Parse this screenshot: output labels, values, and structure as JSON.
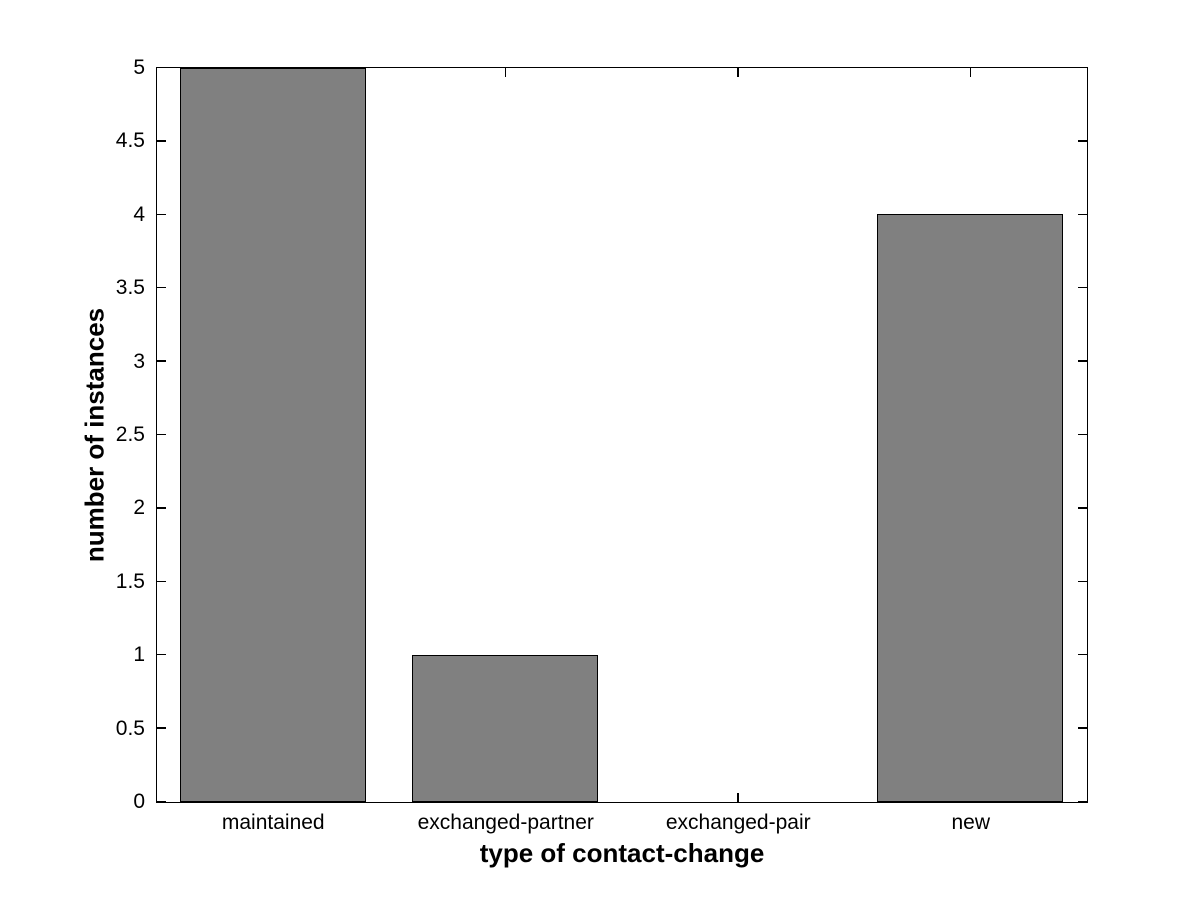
{
  "chart_data": {
    "type": "bar",
    "title": "",
    "categories": [
      "maintained",
      "exchanged-partner",
      "exchanged-pair",
      "new"
    ],
    "values": [
      5,
      1,
      0,
      4
    ],
    "xlabel": "type of contact-change",
    "ylabel": "number of instances",
    "ylim": [
      0,
      5
    ],
    "ytick_step": 0.5,
    "ytick_labels": [
      "0",
      "0.5",
      "1",
      "1.5",
      "2",
      "2.5",
      "3",
      "3.5",
      "4",
      "4.5",
      "5"
    ],
    "bar_width_fraction": 0.8,
    "bar_fill_color": "#808080",
    "bar_edge_color": "#000000",
    "axis_color": "#000000",
    "background_color": "#ffffff",
    "grid": false,
    "legend": null,
    "tick_direction": "in",
    "box": true
  }
}
